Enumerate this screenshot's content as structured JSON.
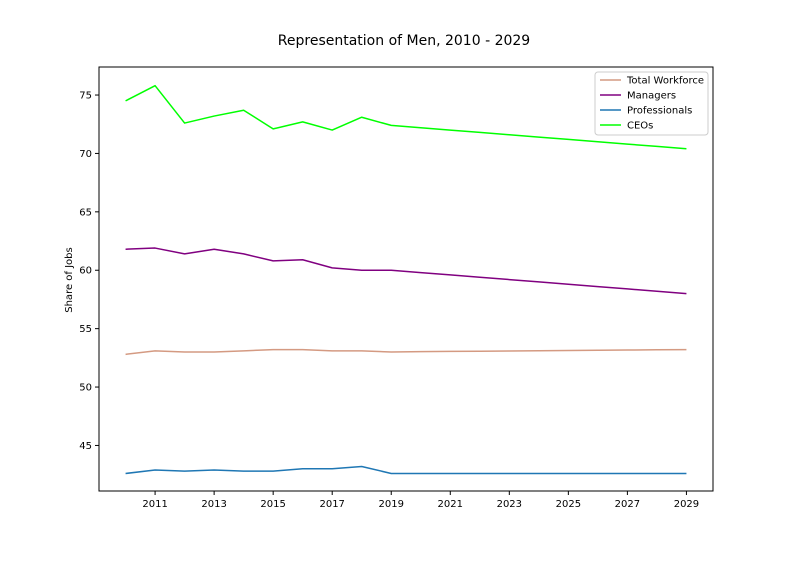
{
  "chart_data": {
    "type": "line",
    "title": "Representation of Men, 2010 - 2029",
    "xlabel": "",
    "ylabel": "Share of Jobs",
    "x": [
      2010,
      2011,
      2012,
      2013,
      2014,
      2015,
      2016,
      2017,
      2018,
      2019,
      2020,
      2021,
      2022,
      2023,
      2024,
      2025,
      2026,
      2027,
      2028,
      2029
    ],
    "xticks": [
      2011,
      2013,
      2015,
      2017,
      2019,
      2021,
      2023,
      2025,
      2027,
      2029
    ],
    "yticks": [
      45,
      50,
      55,
      60,
      65,
      70,
      75
    ],
    "xlim": [
      2009.1,
      2029.9
    ],
    "ylim": [
      41.1,
      77.4
    ],
    "grid": false,
    "legend_position": "top-right",
    "series": [
      {
        "name": "Total Workforce",
        "color": "#d49a82",
        "values": [
          52.8,
          53.1,
          53.0,
          53.0,
          53.1,
          53.2,
          53.2,
          53.1,
          53.1,
          53.0,
          53.03,
          53.05,
          53.07,
          53.09,
          53.11,
          53.13,
          53.15,
          53.17,
          53.19,
          53.2
        ]
      },
      {
        "name": "Managers",
        "color": "#800080",
        "values": [
          61.8,
          61.9,
          61.4,
          61.8,
          61.4,
          60.8,
          60.9,
          60.2,
          60.0,
          60.0,
          59.8,
          59.6,
          59.4,
          59.2,
          59.0,
          58.8,
          58.6,
          58.4,
          58.2,
          58.0
        ]
      },
      {
        "name": "Professionals",
        "color": "#1f77b4",
        "values": [
          42.6,
          42.9,
          42.8,
          42.9,
          42.8,
          42.8,
          43.0,
          43.0,
          43.2,
          42.6,
          42.6,
          42.6,
          42.6,
          42.6,
          42.6,
          42.6,
          42.6,
          42.6,
          42.6,
          42.6
        ]
      },
      {
        "name": "CEOs",
        "color": "#00ff00",
        "values": [
          74.5,
          75.8,
          72.6,
          73.2,
          73.7,
          72.1,
          72.7,
          72.0,
          73.1,
          72.4,
          72.2,
          72.0,
          71.8,
          71.6,
          71.4,
          71.2,
          71.0,
          70.8,
          70.6,
          70.4
        ]
      }
    ]
  }
}
